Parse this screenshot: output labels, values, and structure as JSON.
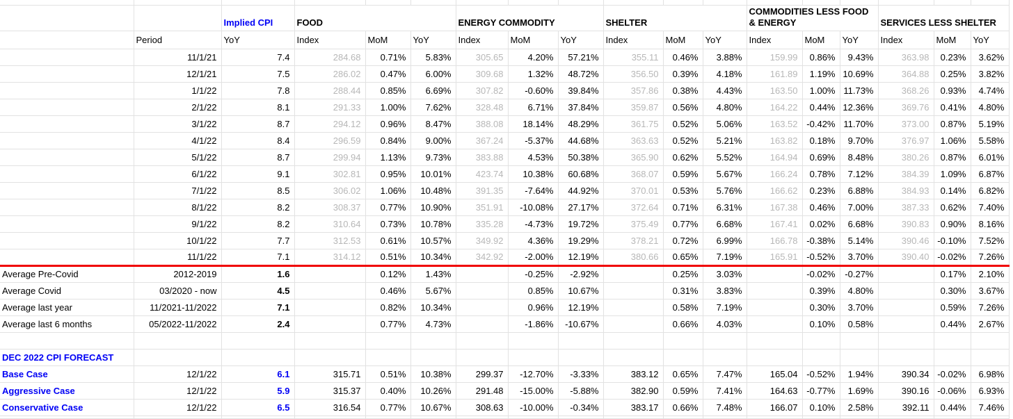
{
  "app": {
    "description": "CPI components spreadsheet with averages and December 2022 forecast"
  },
  "colors": {
    "accent_blue": "#0000f5",
    "divider_red": "#f00000",
    "muted_index_gray": "#b7b7b7",
    "gridline": "#e2e2e2"
  },
  "table": {
    "group_headers": [
      {
        "label": "Implied CPI",
        "style": "blue"
      },
      {
        "label": "FOOD",
        "style": "black"
      },
      {
        "label": "ENERGY COMMODITY",
        "style": "black"
      },
      {
        "label": "SHELTER",
        "style": "black"
      },
      {
        "label": "COMMODITIES LESS FOOD & ENERGY",
        "style": "black"
      },
      {
        "label": "SERVICES LESS SHELTER",
        "style": "black"
      }
    ],
    "columns": [
      "Period",
      "YoY",
      "Index",
      "MoM",
      "YoY",
      "Index",
      "MoM",
      "YoY",
      "Index",
      "MoM",
      "YoY",
      "Index",
      "MoM",
      "YoY",
      "Index",
      "MoM",
      "YoY"
    ],
    "monthly_rows": [
      {
        "period": "11/1/21",
        "implied": "7.4",
        "food": [
          "284.68",
          "0.71%",
          "5.83%"
        ],
        "energy": [
          "305.65",
          "4.20%",
          "57.21%"
        ],
        "shelter": [
          "355.11",
          "0.46%",
          "3.88%"
        ],
        "commodities": [
          "159.99",
          "0.86%",
          "9.43%"
        ],
        "services": [
          "363.98",
          "0.23%",
          "3.62%"
        ]
      },
      {
        "period": "12/1/21",
        "implied": "7.5",
        "food": [
          "286.02",
          "0.47%",
          "6.00%"
        ],
        "energy": [
          "309.68",
          "1.32%",
          "48.72%"
        ],
        "shelter": [
          "356.50",
          "0.39%",
          "4.18%"
        ],
        "commodities": [
          "161.89",
          "1.19%",
          "10.69%"
        ],
        "services": [
          "364.88",
          "0.25%",
          "3.82%"
        ]
      },
      {
        "period": "1/1/22",
        "implied": "7.8",
        "food": [
          "288.44",
          "0.85%",
          "6.69%"
        ],
        "energy": [
          "307.82",
          "-0.60%",
          "39.84%"
        ],
        "shelter": [
          "357.86",
          "0.38%",
          "4.43%"
        ],
        "commodities": [
          "163.50",
          "1.00%",
          "11.73%"
        ],
        "services": [
          "368.26",
          "0.93%",
          "4.74%"
        ]
      },
      {
        "period": "2/1/22",
        "implied": "8.1",
        "food": [
          "291.33",
          "1.00%",
          "7.62%"
        ],
        "energy": [
          "328.48",
          "6.71%",
          "37.84%"
        ],
        "shelter": [
          "359.87",
          "0.56%",
          "4.80%"
        ],
        "commodities": [
          "164.22",
          "0.44%",
          "12.36%"
        ],
        "services": [
          "369.76",
          "0.41%",
          "4.80%"
        ]
      },
      {
        "period": "3/1/22",
        "implied": "8.7",
        "food": [
          "294.12",
          "0.96%",
          "8.47%"
        ],
        "energy": [
          "388.08",
          "18.14%",
          "48.29%"
        ],
        "shelter": [
          "361.75",
          "0.52%",
          "5.06%"
        ],
        "commodities": [
          "163.52",
          "-0.42%",
          "11.70%"
        ],
        "services": [
          "373.00",
          "0.87%",
          "5.19%"
        ]
      },
      {
        "period": "4/1/22",
        "implied": "8.4",
        "food": [
          "296.59",
          "0.84%",
          "9.00%"
        ],
        "energy": [
          "367.24",
          "-5.37%",
          "44.68%"
        ],
        "shelter": [
          "363.63",
          "0.52%",
          "5.21%"
        ],
        "commodities": [
          "163.82",
          "0.18%",
          "9.70%"
        ],
        "services": [
          "376.97",
          "1.06%",
          "5.58%"
        ]
      },
      {
        "period": "5/1/22",
        "implied": "8.7",
        "food": [
          "299.94",
          "1.13%",
          "9.73%"
        ],
        "energy": [
          "383.88",
          "4.53%",
          "50.38%"
        ],
        "shelter": [
          "365.90",
          "0.62%",
          "5.52%"
        ],
        "commodities": [
          "164.94",
          "0.69%",
          "8.48%"
        ],
        "services": [
          "380.26",
          "0.87%",
          "6.01%"
        ]
      },
      {
        "period": "6/1/22",
        "implied": "9.1",
        "food": [
          "302.81",
          "0.95%",
          "10.01%"
        ],
        "energy": [
          "423.74",
          "10.38%",
          "60.68%"
        ],
        "shelter": [
          "368.07",
          "0.59%",
          "5.67%"
        ],
        "commodities": [
          "166.24",
          "0.78%",
          "7.12%"
        ],
        "services": [
          "384.39",
          "1.09%",
          "6.87%"
        ]
      },
      {
        "period": "7/1/22",
        "implied": "8.5",
        "food": [
          "306.02",
          "1.06%",
          "10.48%"
        ],
        "energy": [
          "391.35",
          "-7.64%",
          "44.92%"
        ],
        "shelter": [
          "370.01",
          "0.53%",
          "5.76%"
        ],
        "commodities": [
          "166.62",
          "0.23%",
          "6.88%"
        ],
        "services": [
          "384.93",
          "0.14%",
          "6.82%"
        ]
      },
      {
        "period": "8/1/22",
        "implied": "8.2",
        "food": [
          "308.37",
          "0.77%",
          "10.90%"
        ],
        "energy": [
          "351.91",
          "-10.08%",
          "27.17%"
        ],
        "shelter": [
          "372.64",
          "0.71%",
          "6.31%"
        ],
        "commodities": [
          "167.38",
          "0.46%",
          "7.00%"
        ],
        "services": [
          "387.33",
          "0.62%",
          "7.40%"
        ]
      },
      {
        "period": "9/1/22",
        "implied": "8.2",
        "food": [
          "310.64",
          "0.73%",
          "10.78%"
        ],
        "energy": [
          "335.28",
          "-4.73%",
          "19.72%"
        ],
        "shelter": [
          "375.49",
          "0.77%",
          "6.68%"
        ],
        "commodities": [
          "167.41",
          "0.02%",
          "6.68%"
        ],
        "services": [
          "390.83",
          "0.90%",
          "8.16%"
        ]
      },
      {
        "period": "10/1/22",
        "implied": "7.7",
        "food": [
          "312.53",
          "0.61%",
          "10.57%"
        ],
        "energy": [
          "349.92",
          "4.36%",
          "19.29%"
        ],
        "shelter": [
          "378.21",
          "0.72%",
          "6.99%"
        ],
        "commodities": [
          "166.78",
          "-0.38%",
          "5.14%"
        ],
        "services": [
          "390.46",
          "-0.10%",
          "7.52%"
        ]
      },
      {
        "period": "11/1/22",
        "implied": "7.1",
        "food": [
          "314.12",
          "0.51%",
          "10.34%"
        ],
        "energy": [
          "342.92",
          "-2.00%",
          "12.19%"
        ],
        "shelter": [
          "380.66",
          "0.65%",
          "7.19%"
        ],
        "commodities": [
          "165.91",
          "-0.52%",
          "3.70%"
        ],
        "services": [
          "390.40",
          "-0.02%",
          "7.26%"
        ]
      }
    ],
    "average_rows": [
      {
        "label": "Average Pre-Covid",
        "period": "2012-2019",
        "implied": "1.6",
        "food": [
          "",
          "0.12%",
          "1.43%"
        ],
        "energy": [
          "",
          "-0.25%",
          "-2.92%"
        ],
        "shelter": [
          "",
          "0.25%",
          "3.03%"
        ],
        "commodities": [
          "",
          "-0.02%",
          "-0.27%"
        ],
        "services": [
          "",
          "0.17%",
          "2.10%"
        ]
      },
      {
        "label": "Average Covid",
        "period": "03/2020 - now",
        "implied": "4.5",
        "food": [
          "",
          "0.46%",
          "5.67%"
        ],
        "energy": [
          "",
          "0.85%",
          "10.67%"
        ],
        "shelter": [
          "",
          "0.31%",
          "3.83%"
        ],
        "commodities": [
          "",
          "0.39%",
          "4.80%"
        ],
        "services": [
          "",
          "0.30%",
          "3.67%"
        ]
      },
      {
        "label": "Average last year",
        "period": "11/2021-11/2022",
        "implied": "7.1",
        "food": [
          "",
          "0.82%",
          "10.34%"
        ],
        "energy": [
          "",
          "0.96%",
          "12.19%"
        ],
        "shelter": [
          "",
          "0.58%",
          "7.19%"
        ],
        "commodities": [
          "",
          "0.30%",
          "3.70%"
        ],
        "services": [
          "",
          "0.59%",
          "7.26%"
        ]
      },
      {
        "label": "Average last 6 months",
        "period": "05/2022-11/2022",
        "implied": "2.4",
        "food": [
          "",
          "0.77%",
          "4.73%"
        ],
        "energy": [
          "",
          "-1.86%",
          "-10.67%"
        ],
        "shelter": [
          "",
          "0.66%",
          "4.03%"
        ],
        "commodities": [
          "",
          "0.10%",
          "0.58%"
        ],
        "services": [
          "",
          "0.44%",
          "2.67%"
        ]
      }
    ],
    "forecast": {
      "title": "DEC 2022 CPI FORECAST",
      "rows": [
        {
          "label": "Base Case",
          "period": "12/1/22",
          "implied": "6.1",
          "food": [
            "315.71",
            "0.51%",
            "10.38%"
          ],
          "energy": [
            "299.37",
            "-12.70%",
            "-3.33%"
          ],
          "shelter": [
            "383.12",
            "0.65%",
            "7.47%"
          ],
          "commodities": [
            "165.04",
            "-0.52%",
            "1.94%"
          ],
          "services": [
            "390.34",
            "-0.02%",
            "6.98%"
          ]
        },
        {
          "label": "Aggressive Case",
          "period": "12/1/22",
          "implied": "5.9",
          "food": [
            "315.37",
            "0.40%",
            "10.26%"
          ],
          "energy": [
            "291.48",
            "-15.00%",
            "-5.88%"
          ],
          "shelter": [
            "382.90",
            "0.59%",
            "7.41%"
          ],
          "commodities": [
            "164.63",
            "-0.77%",
            "1.69%"
          ],
          "services": [
            "390.16",
            "-0.06%",
            "6.93%"
          ]
        },
        {
          "label": "Conservative Case",
          "period": "12/1/22",
          "implied": "6.5",
          "food": [
            "316.54",
            "0.77%",
            "10.67%"
          ],
          "energy": [
            "308.63",
            "-10.00%",
            "-0.34%"
          ],
          "shelter": [
            "383.17",
            "0.66%",
            "7.48%"
          ],
          "commodities": [
            "166.07",
            "0.10%",
            "2.58%"
          ],
          "services": [
            "392.11",
            "0.44%",
            "7.46%"
          ]
        }
      ]
    }
  }
}
